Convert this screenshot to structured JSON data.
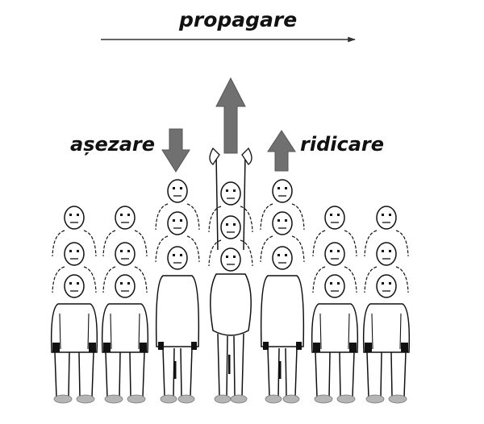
{
  "labels": {
    "propagation": "propagare",
    "sitting": "așezare",
    "rising": "ridicare"
  },
  "figure": {
    "columns": 7,
    "column_states": [
      "low",
      "low",
      "sitting",
      "standing",
      "rising",
      "low",
      "low"
    ]
  },
  "colors": {
    "ink": "#111111",
    "arrow": "#707070",
    "shoe": "#b5b5b5",
    "background": "#ffffff"
  }
}
